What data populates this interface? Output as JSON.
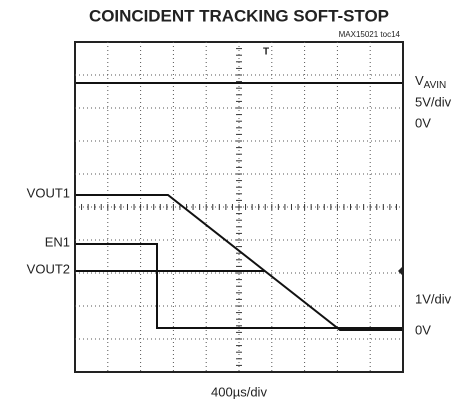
{
  "title": "COINCIDENT TRACKING SOFT-STOP",
  "figure_id": "MAX15021 toc14",
  "left_labels": [
    "VOUT1",
    "EN1",
    "VOUT2"
  ],
  "right_labels": {
    "vavin_main": "V",
    "vavin_sub": "AVIN",
    "scale_top": "5V/div",
    "zero_top": "0V",
    "scale_bottom": "1V/div",
    "zero_bottom": "0V"
  },
  "time_scale": "400µs/div",
  "trigger_marker": "T"
}
